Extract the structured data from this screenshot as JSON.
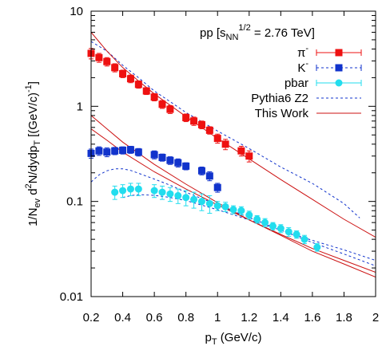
{
  "chart_data": {
    "type": "scatter",
    "annotation": {
      "pre": "pp [s",
      "sub": "NN",
      "sup": "1/2",
      "post": " = 2.76 TeV]"
    },
    "xlabel": {
      "main": "p",
      "sub": "T",
      "rest": " (GeV/c)"
    },
    "ylabel": {
      "p1": "1/N",
      "s1": "ev",
      "p2": " d",
      "sup2": "2",
      "p3": "N/dydp",
      "s3": "T",
      "p4": " [(GeV/c)",
      "sup4": "-1",
      "p5": "]"
    },
    "xlim": [
      0.2,
      2.0
    ],
    "ylim": [
      0.01,
      10
    ],
    "yscale": "log",
    "x_ticks": [
      {
        "v": 0.2,
        "label": "0.2"
      },
      {
        "v": 0.4,
        "label": "0.4"
      },
      {
        "v": 0.6,
        "label": "0.6"
      },
      {
        "v": 0.8,
        "label": "0.8"
      },
      {
        "v": 1.0,
        "label": "1"
      },
      {
        "v": 1.2,
        "label": "1.2"
      },
      {
        "v": 1.4,
        "label": "1.4"
      },
      {
        "v": 1.6,
        "label": "1.6"
      },
      {
        "v": 1.8,
        "label": "1.8"
      },
      {
        "v": 2.0,
        "label": "2"
      }
    ],
    "y_ticks": [
      {
        "v": 0.01,
        "label": "0.01"
      },
      {
        "v": 0.1,
        "label": "0.1"
      },
      {
        "v": 1,
        "label": "1"
      },
      {
        "v": 10,
        "label": "10"
      }
    ],
    "grid": false,
    "legend_position": "top-right",
    "series": [
      {
        "name": "π",
        "name_sup": "-",
        "kind": "points",
        "marker": "square",
        "color": "#ee1111",
        "points": [
          [
            0.2,
            3.6,
            0.45
          ],
          [
            0.25,
            3.25,
            0.35
          ],
          [
            0.3,
            2.95,
            0.3
          ],
          [
            0.35,
            2.55,
            0.25
          ],
          [
            0.4,
            2.2,
            0.2
          ],
          [
            0.45,
            1.95,
            0.18
          ],
          [
            0.5,
            1.7,
            0.15
          ],
          [
            0.55,
            1.45,
            0.12
          ],
          [
            0.6,
            1.25,
            0.11
          ],
          [
            0.65,
            1.05,
            0.1
          ],
          [
            0.7,
            0.93,
            0.09
          ],
          [
            0.8,
            0.76,
            0.07
          ],
          [
            0.85,
            0.7,
            0.07
          ],
          [
            0.9,
            0.64,
            0.06
          ],
          [
            0.95,
            0.56,
            0.05
          ],
          [
            1.0,
            0.46,
            0.05
          ],
          [
            1.05,
            0.4,
            0.05
          ],
          [
            1.15,
            0.34,
            0.04
          ],
          [
            1.2,
            0.3,
            0.04
          ]
        ]
      },
      {
        "name": "K",
        "name_sup": "-",
        "kind": "points",
        "marker": "square",
        "color": "#1133cc",
        "points": [
          [
            0.2,
            0.32,
            0.035
          ],
          [
            0.25,
            0.34,
            0.035
          ],
          [
            0.3,
            0.33,
            0.035
          ],
          [
            0.35,
            0.34,
            0.03
          ],
          [
            0.4,
            0.345,
            0.03
          ],
          [
            0.45,
            0.35,
            0.03
          ],
          [
            0.5,
            0.33,
            0.03
          ],
          [
            0.6,
            0.31,
            0.03
          ],
          [
            0.65,
            0.29,
            0.025
          ],
          [
            0.7,
            0.27,
            0.025
          ],
          [
            0.75,
            0.255,
            0.025
          ],
          [
            0.8,
            0.235,
            0.02
          ],
          [
            0.9,
            0.21,
            0.02
          ],
          [
            0.95,
            0.185,
            0.02
          ],
          [
            1.0,
            0.14,
            0.015
          ]
        ]
      },
      {
        "name": "pbar",
        "kind": "points",
        "marker": "circle",
        "color": "#22ddee",
        "points": [
          [
            0.35,
            0.125,
            0.02
          ],
          [
            0.4,
            0.13,
            0.02
          ],
          [
            0.45,
            0.135,
            0.02
          ],
          [
            0.5,
            0.135,
            0.02
          ],
          [
            0.6,
            0.13,
            0.02
          ],
          [
            0.65,
            0.125,
            0.02
          ],
          [
            0.7,
            0.12,
            0.02
          ],
          [
            0.75,
            0.115,
            0.02
          ],
          [
            0.8,
            0.11,
            0.02
          ],
          [
            0.85,
            0.105,
            0.02
          ],
          [
            0.9,
            0.1,
            0.02
          ],
          [
            0.95,
            0.095,
            0.02
          ],
          [
            1.0,
            0.09,
            0.01
          ],
          [
            1.05,
            0.088,
            0.01
          ],
          [
            1.1,
            0.082,
            0.008
          ],
          [
            1.15,
            0.08,
            0.008
          ],
          [
            1.2,
            0.072,
            0.007
          ],
          [
            1.25,
            0.065,
            0.006
          ],
          [
            1.3,
            0.06,
            0.006
          ],
          [
            1.35,
            0.055,
            0.005
          ],
          [
            1.4,
            0.052,
            0.005
          ],
          [
            1.45,
            0.048,
            0.005
          ],
          [
            1.5,
            0.045,
            0.004
          ],
          [
            1.55,
            0.04,
            0.004
          ],
          [
            1.63,
            0.033,
            0.003
          ]
        ]
      },
      {
        "name": "Pythia6 Z2",
        "kind": "dashed",
        "color": "#1133cc",
        "curves": [
          [
            [
              0.2,
              4.8
            ],
            [
              0.3,
              3.8
            ],
            [
              0.4,
              2.7
            ],
            [
              0.5,
              2.0
            ],
            [
              0.6,
              1.45
            ],
            [
              0.7,
              1.12
            ],
            [
              0.8,
              0.86
            ],
            [
              1.0,
              0.55
            ],
            [
              1.2,
              0.36
            ],
            [
              1.4,
              0.23
            ],
            [
              1.6,
              0.155
            ],
            [
              1.8,
              0.095
            ],
            [
              1.9,
              0.067
            ]
          ],
          [
            [
              0.2,
              0.16
            ],
            [
              0.25,
              0.19
            ],
            [
              0.3,
              0.21
            ],
            [
              0.35,
              0.22
            ],
            [
              0.4,
              0.22
            ],
            [
              0.45,
              0.212
            ],
            [
              0.5,
              0.198
            ],
            [
              0.6,
              0.172
            ],
            [
              0.7,
              0.148
            ],
            [
              0.8,
              0.125
            ],
            [
              1.0,
              0.092
            ],
            [
              1.2,
              0.068
            ],
            [
              1.4,
              0.05
            ],
            [
              1.6,
              0.037
            ],
            [
              1.8,
              0.028
            ],
            [
              2.0,
              0.021
            ]
          ],
          [
            [
              0.4,
              0.11
            ],
            [
              0.45,
              0.115
            ],
            [
              0.5,
              0.118
            ],
            [
              0.6,
              0.116
            ],
            [
              0.7,
              0.11
            ],
            [
              0.8,
              0.102
            ],
            [
              1.0,
              0.082
            ],
            [
              1.2,
              0.064
            ],
            [
              1.4,
              0.05
            ],
            [
              1.6,
              0.039
            ],
            [
              1.8,
              0.031
            ],
            [
              2.0,
              0.024
            ]
          ]
        ]
      },
      {
        "name": "This Work",
        "kind": "solid",
        "color": "#cc1111",
        "curves": [
          [
            [
              0.2,
              6.0
            ],
            [
              0.3,
              3.8
            ],
            [
              0.4,
              2.55
            ],
            [
              0.5,
              1.85
            ],
            [
              0.6,
              1.35
            ],
            [
              0.8,
              0.78
            ],
            [
              1.0,
              0.46
            ],
            [
              1.2,
              0.28
            ],
            [
              1.4,
              0.17
            ],
            [
              1.6,
              0.105
            ],
            [
              1.8,
              0.065
            ],
            [
              2.0,
              0.042
            ]
          ],
          [
            [
              0.2,
              0.8
            ],
            [
              0.3,
              0.58
            ],
            [
              0.4,
              0.42
            ],
            [
              0.6,
              0.245
            ],
            [
              0.8,
              0.152
            ],
            [
              1.0,
              0.097
            ],
            [
              1.2,
              0.064
            ],
            [
              1.4,
              0.044
            ],
            [
              1.6,
              0.03
            ],
            [
              1.8,
              0.022
            ],
            [
              2.0,
              0.016
            ]
          ],
          [
            [
              0.2,
              0.58
            ],
            [
              0.3,
              0.44
            ],
            [
              0.4,
              0.33
            ],
            [
              0.6,
              0.205
            ],
            [
              0.8,
              0.135
            ],
            [
              1.0,
              0.092
            ],
            [
              1.2,
              0.064
            ],
            [
              1.4,
              0.045
            ],
            [
              1.6,
              0.032
            ],
            [
              1.8,
              0.024
            ],
            [
              2.0,
              0.018
            ]
          ]
        ]
      }
    ]
  }
}
